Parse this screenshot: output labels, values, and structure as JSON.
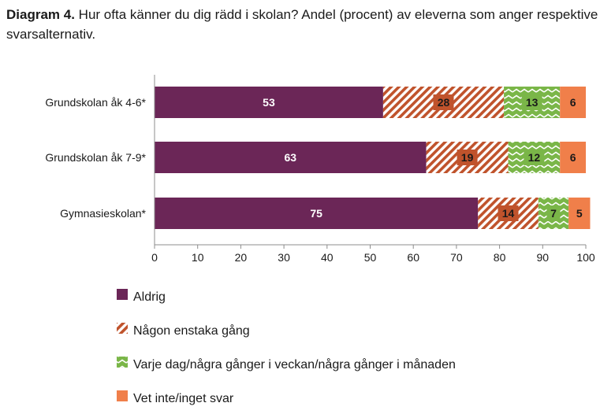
{
  "title": {
    "prefix": "Diagram 4.",
    "text": "Hur ofta känner du dig rädd i skolan? Andel (procent) av eleverna som anger respektive svarsalternativ."
  },
  "chart_data": {
    "type": "bar",
    "orientation": "horizontal",
    "stacked": true,
    "categories": [
      "Grundskolan åk 4-6*",
      "Grundskolan åk 7-9*",
      "Gymnasieskolan*"
    ],
    "series": [
      {
        "name": "Aldrig",
        "values": [
          53,
          63,
          75
        ],
        "color": "#6b2657",
        "label_color": "#ffffff",
        "pattern": "solid"
      },
      {
        "name": "Någon enstaka gång",
        "values": [
          28,
          19,
          14
        ],
        "color": "#c0532c",
        "label_color": "#1a1a1a",
        "pattern": "diagonal"
      },
      {
        "name": "Varje dag/några gånger i veckan/några gånger i månaden",
        "values": [
          13,
          12,
          7
        ],
        "color": "#7ab648",
        "label_color": "#1a1a1a",
        "pattern": "zigzag"
      },
      {
        "name": "Vet inte/inget svar",
        "values": [
          6,
          6,
          5
        ],
        "color": "#f07f4a",
        "label_color": "#1a1a1a",
        "pattern": "solid"
      }
    ],
    "xlim": [
      0,
      100
    ],
    "xticks": [
      0,
      10,
      20,
      30,
      40,
      50,
      60,
      70,
      80,
      90,
      100
    ],
    "legend_position": "bottom-left"
  }
}
